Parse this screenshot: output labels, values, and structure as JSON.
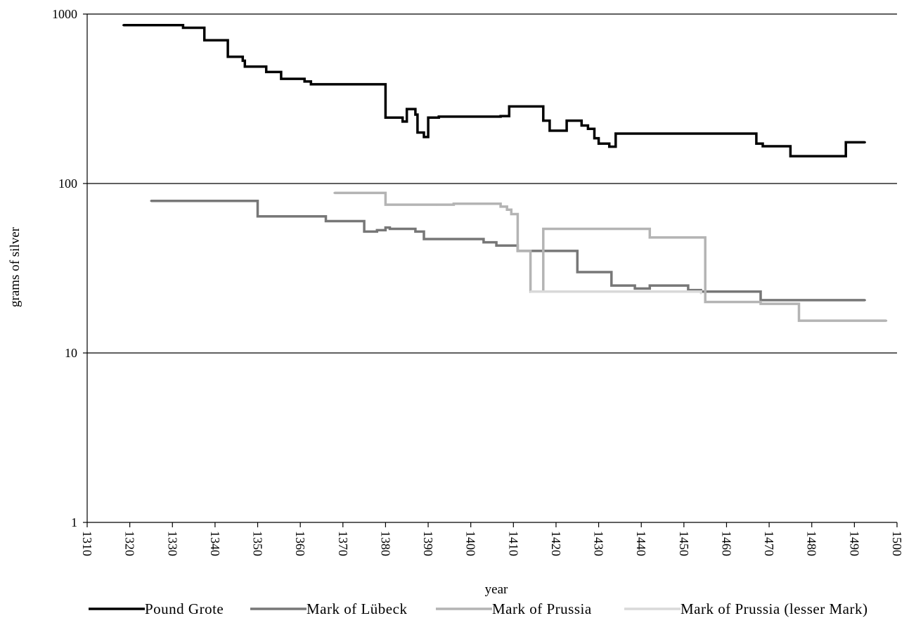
{
  "chart_data": {
    "type": "line",
    "title": "",
    "xlabel": "year",
    "ylabel": "grams of silver",
    "yscale": "log",
    "xlim": [
      1310,
      1500
    ],
    "ylim": [
      1,
      1000
    ],
    "x_ticks": [
      "1310",
      "1320",
      "1330",
      "1340",
      "1350",
      "1360",
      "1370",
      "1380",
      "1390",
      "1400",
      "1410",
      "1420",
      "1430",
      "1440",
      "1450",
      "1460",
      "1470",
      "1480",
      "1490",
      "1500"
    ],
    "y_ticks": [
      "1",
      "10",
      "100",
      "1000"
    ],
    "grid": "horizontal major",
    "legend_position": "bottom",
    "series": [
      {
        "name": "Pound Grote",
        "color": "#000000",
        "step": true,
        "points": [
          [
            1318.5,
            860
          ],
          [
            1332.5,
            830
          ],
          [
            1337.5,
            700
          ],
          [
            1343,
            560
          ],
          [
            1346.5,
            530
          ],
          [
            1347,
            490
          ],
          [
            1352,
            455
          ],
          [
            1355.5,
            415
          ],
          [
            1361,
            400
          ],
          [
            1362.5,
            385
          ],
          [
            1380,
            245
          ],
          [
            1384,
            232
          ],
          [
            1385,
            275
          ],
          [
            1387,
            255
          ],
          [
            1387.5,
            200
          ],
          [
            1389,
            188
          ],
          [
            1390,
            245
          ],
          [
            1392.5,
            248
          ],
          [
            1407,
            250
          ],
          [
            1409,
            285
          ],
          [
            1417,
            235
          ],
          [
            1418.5,
            205
          ],
          [
            1422.5,
            235
          ],
          [
            1426,
            220
          ],
          [
            1427.5,
            210
          ],
          [
            1429,
            185
          ],
          [
            1430,
            172
          ],
          [
            1432.5,
            165
          ],
          [
            1434,
            197
          ],
          [
            1467,
            172
          ],
          [
            1468.5,
            166
          ],
          [
            1475,
            145
          ],
          [
            1488,
            175
          ],
          [
            1492.5,
            175
          ]
        ]
      },
      {
        "name": "Mark of Lübeck",
        "color": "#777777",
        "step": true,
        "points": [
          [
            1325,
            79
          ],
          [
            1350,
            64
          ],
          [
            1366,
            60
          ],
          [
            1375,
            52
          ],
          [
            1378,
            53
          ],
          [
            1380,
            55
          ],
          [
            1381,
            54
          ],
          [
            1387,
            52
          ],
          [
            1389,
            47
          ],
          [
            1403,
            45
          ],
          [
            1406,
            43
          ],
          [
            1411,
            40
          ],
          [
            1425,
            30
          ],
          [
            1433,
            25
          ],
          [
            1438.5,
            24
          ],
          [
            1442,
            25
          ],
          [
            1451,
            23.5
          ],
          [
            1454,
            23
          ],
          [
            1468,
            20.5
          ],
          [
            1492.5,
            20.5
          ]
        ]
      },
      {
        "name": "Mark of Prussia",
        "color": "#b4b4b4",
        "step": true,
        "points": [
          [
            1368,
            88
          ],
          [
            1380,
            75
          ],
          [
            1392,
            75
          ],
          [
            1396,
            76
          ],
          [
            1407,
            73
          ],
          [
            1408.5,
            70
          ],
          [
            1409.5,
            66
          ],
          [
            1411,
            40
          ],
          [
            1414,
            23
          ],
          [
            1417,
            54
          ],
          [
            1442,
            48
          ],
          [
            1455,
            20
          ],
          [
            1468,
            19.5
          ],
          [
            1477,
            15.5
          ],
          [
            1497.5,
            15.5
          ]
        ]
      },
      {
        "name": "Mark of Prussia (lesser Mark)",
        "color": "#d9d9d9",
        "step": true,
        "points": [
          [
            1414,
            23
          ],
          [
            1454,
            22.5
          ]
        ]
      }
    ]
  }
}
